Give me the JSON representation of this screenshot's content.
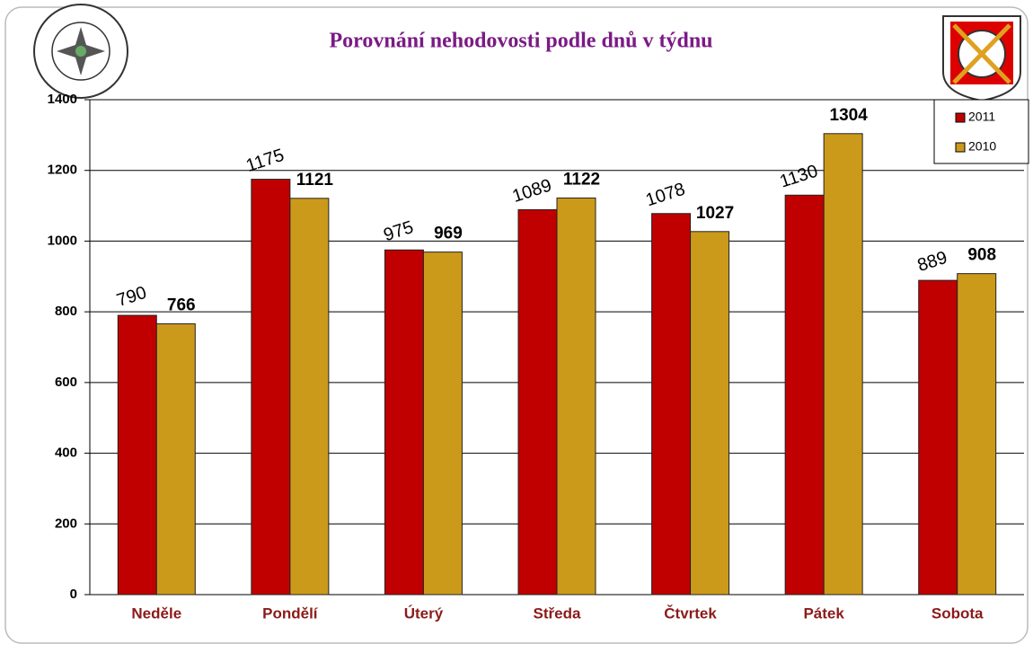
{
  "chart_data": {
    "type": "bar",
    "title": "Porovnání nehodovosti podle dnů v týdnu",
    "categories": [
      "Neděle",
      "Pondělí",
      "Úterý",
      "Středa",
      "Čtvrtek",
      "Pátek",
      "Sobota"
    ],
    "series": [
      {
        "name": "2011",
        "color": "#c00000",
        "values": [
          790,
          1175,
          975,
          1089,
          1078,
          1130,
          889
        ]
      },
      {
        "name": "2010",
        "color": "#cc9a1a",
        "values": [
          766,
          1121,
          969,
          1122,
          1027,
          1304,
          908
        ]
      }
    ],
    "ylim": [
      0,
      1400
    ],
    "yticks": [
      0,
      200,
      400,
      600,
      800,
      1000,
      1200,
      1400
    ],
    "grid": true,
    "legend": "top-right"
  }
}
